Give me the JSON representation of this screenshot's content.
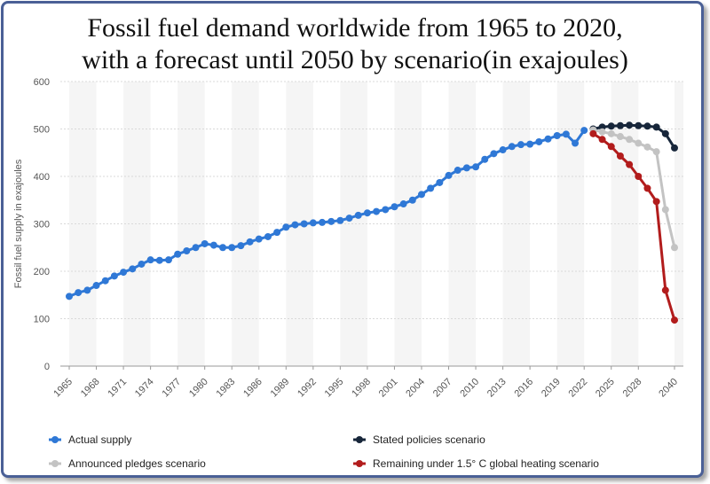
{
  "title": {
    "line1": "Fossil fuel demand worldwide from 1965 to 2020,",
    "line2": "with a forecast until 2050 by scenario(in exajoules)"
  },
  "chart_data": {
    "type": "line",
    "ylabel": "Fossil fuel supply in exajoules",
    "ylim": [
      0,
      600
    ],
    "yticks": [
      0,
      100,
      200,
      300,
      400,
      500,
      600
    ],
    "grid": "horizontal",
    "legend_position": "bottom",
    "x_tick_labels": [
      "1965",
      "1968",
      "1971",
      "1974",
      "1977",
      "1980",
      "1983",
      "1986",
      "1989",
      "1992",
      "1995",
      "1998",
      "2001",
      "2004",
      "2007",
      "2010",
      "2013",
      "2016",
      "2019",
      "2022",
      "2025",
      "2028",
      "2040"
    ],
    "series": [
      {
        "name": "Actual supply",
        "color": "#2f78d6",
        "x": [
          "1965",
          "1966",
          "1967",
          "1968",
          "1969",
          "1970",
          "1971",
          "1972",
          "1973",
          "1974",
          "1975",
          "1976",
          "1977",
          "1978",
          "1979",
          "1980",
          "1981",
          "1982",
          "1983",
          "1984",
          "1985",
          "1986",
          "1987",
          "1988",
          "1989",
          "1990",
          "1991",
          "1992",
          "1993",
          "1994",
          "1995",
          "1996",
          "1997",
          "1998",
          "1999",
          "2000",
          "2001",
          "2002",
          "2003",
          "2004",
          "2005",
          "2006",
          "2007",
          "2008",
          "2009",
          "2010",
          "2011",
          "2012",
          "2013",
          "2014",
          "2015",
          "2016",
          "2017",
          "2018",
          "2019",
          "2020",
          "2021",
          "2022"
        ],
        "values": [
          147,
          155,
          160,
          170,
          180,
          190,
          198,
          205,
          215,
          224,
          223,
          224,
          236,
          243,
          250,
          258,
          255,
          250,
          250,
          254,
          262,
          268,
          273,
          282,
          293,
          298,
          300,
          302,
          303,
          305,
          307,
          312,
          318,
          323,
          326,
          330,
          336,
          342,
          350,
          362,
          375,
          387,
          402,
          413,
          418,
          420,
          436,
          448,
          456,
          463,
          467,
          468,
          473,
          479,
          486,
          489,
          470,
          497
        ]
      },
      {
        "name": "Stated policies scenario",
        "color": "#17263a",
        "x": [
          "2023",
          "2024",
          "2025",
          "2026",
          "2027",
          "2028",
          "2029",
          "2030",
          "2035",
          "2040"
        ],
        "values": [
          500,
          504,
          506,
          507,
          508,
          507,
          506,
          504,
          490,
          460
        ]
      },
      {
        "name": "Announced pledges scenario",
        "color": "#c3c3c3",
        "x": [
          "2023",
          "2024",
          "2025",
          "2026",
          "2027",
          "2028",
          "2029",
          "2030",
          "2035",
          "2040"
        ],
        "values": [
          498,
          494,
          490,
          484,
          478,
          470,
          462,
          452,
          330,
          250
        ]
      },
      {
        "name": "Remaining under 1.5° C global heating scenario",
        "color": "#b21c1c",
        "x": [
          "2023",
          "2024",
          "2025",
          "2026",
          "2027",
          "2028",
          "2029",
          "2030",
          "2035",
          "2040"
        ],
        "values": [
          490,
          478,
          463,
          443,
          425,
          400,
          375,
          347,
          160,
          97
        ]
      }
    ]
  }
}
